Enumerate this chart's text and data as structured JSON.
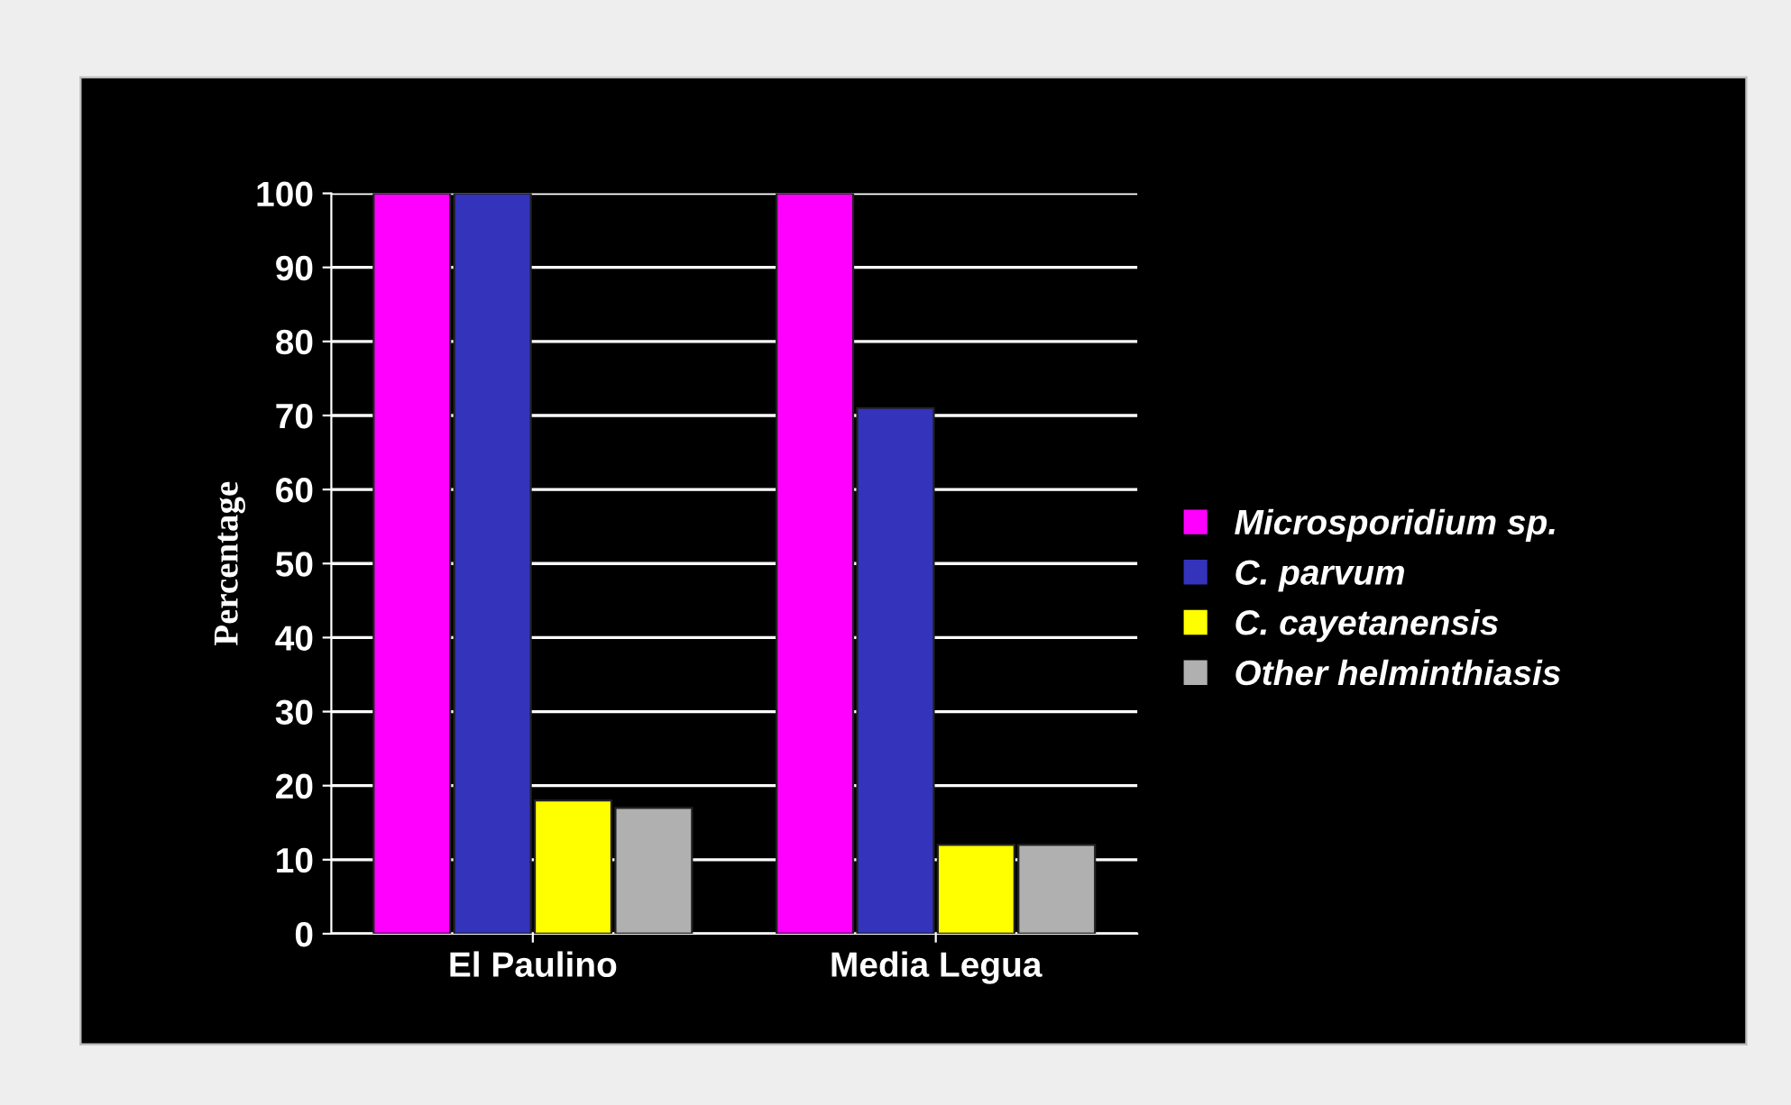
{
  "chart_data": {
    "type": "bar",
    "ylabel": "Percentage",
    "categories": [
      "El Paulino",
      "Media Legua"
    ],
    "series": [
      {
        "name": "Microsporidium sp.",
        "color": "#ff00ff",
        "values": [
          100,
          100
        ]
      },
      {
        "name": "C. parvum",
        "color": "#3333bb",
        "values": [
          100,
          71
        ]
      },
      {
        "name": "C. cayetanensis",
        "color": "#ffff00",
        "values": [
          18,
          12
        ]
      },
      {
        "name": "Other helminthiasis",
        "color": "#b0b0b0",
        "values": [
          17,
          12
        ]
      }
    ],
    "ylim": [
      0,
      100
    ],
    "yticks": [
      0,
      10,
      20,
      30,
      40,
      50,
      60,
      70,
      80,
      90,
      100
    ],
    "grid": "y",
    "legend": "right"
  }
}
